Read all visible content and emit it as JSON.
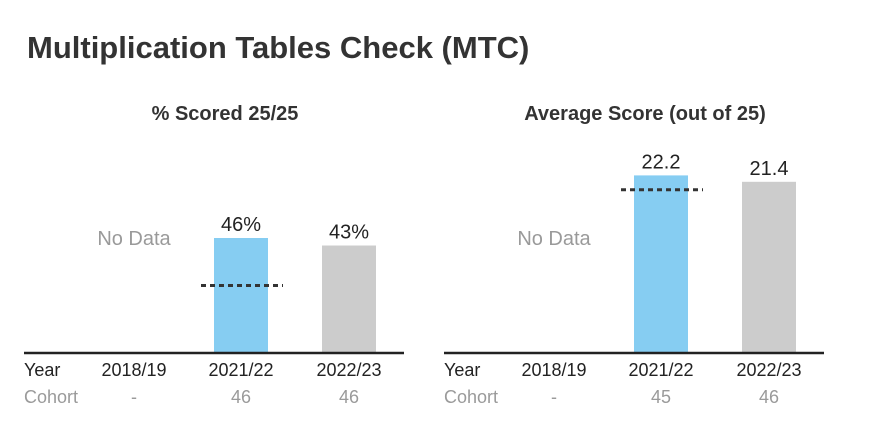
{
  "page_title": "Multiplication Tables Check (MTC)",
  "colors": {
    "current": "#86cdf2",
    "national": "#cccccc",
    "baseline": "#222222",
    "benchmark": "#333333",
    "muted": "#9a9a9a"
  },
  "chart_data": [
    {
      "type": "bar",
      "title": "% Scored 25/25",
      "categories": [
        "2018/19",
        "2021/22",
        "2022/23"
      ],
      "values": [
        null,
        46,
        43
      ],
      "value_labels": [
        "",
        "46%",
        "43%"
      ],
      "bar_colors": [
        "",
        "#86cdf2",
        "#cccccc"
      ],
      "no_data_label": "No Data",
      "benchmark": {
        "category": "2021/22",
        "value": 27
      },
      "ylim": [
        0,
        80
      ],
      "row_labels": {
        "year": "Year",
        "cohort": "Cohort"
      },
      "cohort": [
        "-",
        "46",
        "46"
      ]
    },
    {
      "type": "bar",
      "title": "Average Score (out of 25)",
      "categories": [
        "2018/19",
        "2021/22",
        "2022/23"
      ],
      "values": [
        null,
        22.2,
        21.4
      ],
      "value_labels": [
        "",
        "22.2",
        "21.4"
      ],
      "bar_colors": [
        "",
        "#86cdf2",
        "#cccccc"
      ],
      "no_data_label": "No Data",
      "benchmark": {
        "category": "2021/22",
        "value": 20.4
      },
      "ylim": [
        0,
        25
      ],
      "row_labels": {
        "year": "Year",
        "cohort": "Cohort"
      },
      "cohort": [
        "-",
        "45",
        "46"
      ]
    }
  ]
}
